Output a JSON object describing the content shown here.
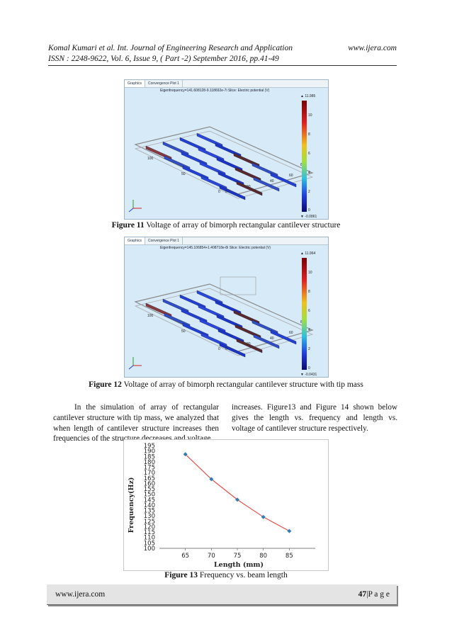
{
  "header": {
    "line1": "Komal Kumari et al. Int. Journal of Engineering Research and Application",
    "website": "www.ijera.com",
    "line2": "ISSN : 2248-9622, Vol. 6, Issue 9, ( Part -2) September 2016, pp.41-49"
  },
  "figure11": {
    "tabs": [
      "Graphics",
      "Convergence Plot 1"
    ],
    "sim_caption": "Eigenfrequency=141.608128-9.118692e-7i   Slice: Electric potential (V)",
    "colorbar_max": "▲ 11.985",
    "colorbar_min": "▼ -0.0861",
    "colorbar_ticks": [
      "10",
      "8",
      "6",
      "4",
      "2",
      "0"
    ],
    "axis_ticks": [
      "100",
      "50",
      "0",
      "0",
      "20",
      "40",
      "60",
      "80"
    ],
    "label": "Figure 11",
    "caption": " Voltage of array of bimorph rectangular cantilever structure"
  },
  "figure12": {
    "tabs": [
      "Graphics",
      "Convergence Plot 1"
    ],
    "sim_caption": "Eigenfrequency=145.106854+1.408718e-8i   Slice: Electric potential (V)",
    "colorbar_max": "▲ 11.964",
    "colorbar_min": "▼ -0.0431",
    "colorbar_ticks": [
      "10",
      "8",
      "6",
      "4",
      "2",
      "0"
    ],
    "axis_ticks": [
      "100",
      "50",
      "0",
      "0",
      "20",
      "40",
      "60",
      "80"
    ],
    "label": "Figure 12",
    "caption": " Voltage of array of bimorph rectangular cantilever structure with tip mass"
  },
  "body": {
    "left_col": "In the simulation of array of rectangular cantilever structure with tip mass, we analyzed that when length of cantilever structure increases then frequencies of the structure decreases and voltage",
    "right_col": "increases. Figure13 and Figure 14 shown below gives the length vs. frequency and length vs. voltage of cantilever structure respectively."
  },
  "chart_data": {
    "type": "line",
    "x": [
      65,
      70,
      75,
      80,
      85
    ],
    "series": [
      {
        "values": [
          187,
          164,
          145,
          129,
          116
        ]
      }
    ],
    "xlabel": "Length (mm)",
    "ylabel": "Frequency(Hz)",
    "xlim": [
      60,
      90
    ],
    "ylim": [
      100,
      195
    ],
    "xticks": [
      65,
      70,
      75,
      80,
      85
    ],
    "yticks": [
      100,
      105,
      110,
      115,
      120,
      125,
      130,
      135,
      140,
      145,
      150,
      155,
      160,
      165,
      170,
      175,
      180,
      185,
      190,
      195
    ],
    "line_color": "#e8332a",
    "marker_color": "#2e7fb8"
  },
  "figure13": {
    "label": "Figure 13",
    "caption": " Frequency vs. beam length"
  },
  "footer": {
    "website": "www.ijera.com",
    "page_number": "47",
    "page_text": "|P a g e"
  }
}
